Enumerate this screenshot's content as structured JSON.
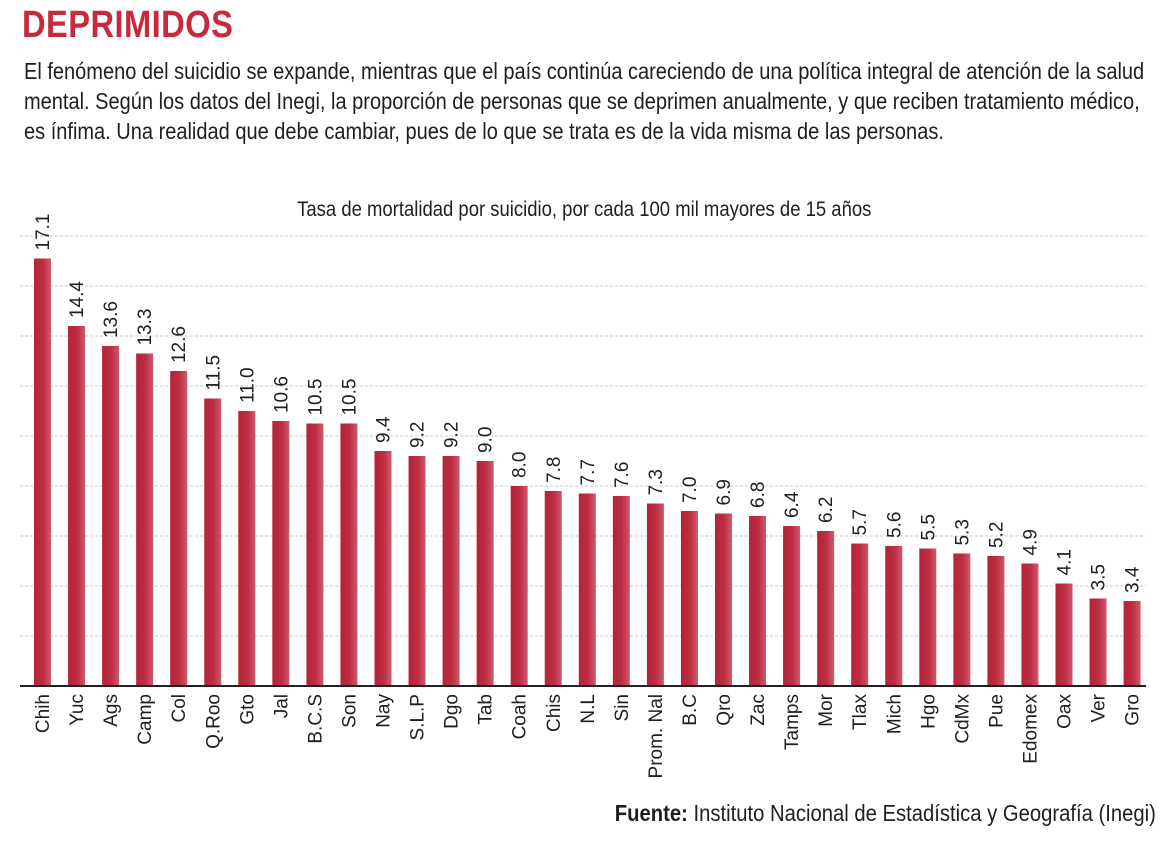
{
  "header": {
    "title": "DEPRIMIDOS",
    "lead": "El fenómeno del suicidio se expande, mientras que el país continúa careciendo de una política integral de atención de la salud mental. Según los datos del Inegi, la proporción de personas que se deprimen anualmente,  y que reciben tratamiento médico, es ínfima. Una realidad que debe cambiar, pues de lo que se trata es de la vida misma de las personas."
  },
  "footer": {
    "source_label": "Fuente:",
    "source_text": "Instituto Nacional de Estadística y Geografía (Inegi)"
  },
  "colors": {
    "accent": "#c62a3c",
    "bar_dark": "#b52336",
    "bar_light": "#cf5a6e",
    "grid": "#c9c9c9"
  },
  "chart_data": {
    "type": "bar",
    "title": "Tasa de mortalidad por suicidio, por cada 100 mil mayores de 15 años",
    "xlabel": "",
    "ylabel": "",
    "ylim": [
      0,
      18
    ],
    "grid": true,
    "categories": [
      "Chih",
      "Yuc",
      "Ags",
      "Camp",
      "Col",
      "Q.Roo",
      "Gto",
      "Jal",
      "B.C.S",
      "Son",
      "Nay",
      "S.L.P",
      "Dgo",
      "Tab",
      "Coah",
      "Chis",
      "N.L",
      "Sin",
      "Prom. Nal",
      "B.C",
      "Qro",
      "Zac",
      "Tamps",
      "Mor",
      "Tlax",
      "Mich",
      "Hgo",
      "CdMx",
      "Pue",
      "Edomex",
      "Oax",
      "Ver",
      "Gro"
    ],
    "values": [
      17.1,
      14.4,
      13.6,
      13.3,
      12.6,
      11.5,
      11.0,
      10.6,
      10.5,
      10.5,
      9.4,
      9.2,
      9.2,
      9.0,
      8.0,
      7.8,
      7.7,
      7.6,
      7.3,
      7.0,
      6.9,
      6.8,
      6.4,
      6.2,
      5.7,
      5.6,
      5.5,
      5.3,
      5.2,
      4.9,
      4.1,
      3.5,
      3.4
    ],
    "value_labels": [
      "17.1",
      "14.4",
      "13.6",
      "13.3",
      "12.6",
      "11.5",
      "11.0",
      "10.6",
      "10.5",
      "10.5",
      "9.4",
      "9.2",
      "9.2",
      "9.0",
      "8.0",
      "7.8",
      "7.7",
      "7.6",
      "7.3",
      "7.0",
      "6.9",
      "6.8",
      "6.4",
      "6.2",
      "5.7",
      "5.6",
      "5.5",
      "5.3",
      "5.2",
      "4.9",
      "4.1",
      "3.5",
      "3.4"
    ]
  }
}
